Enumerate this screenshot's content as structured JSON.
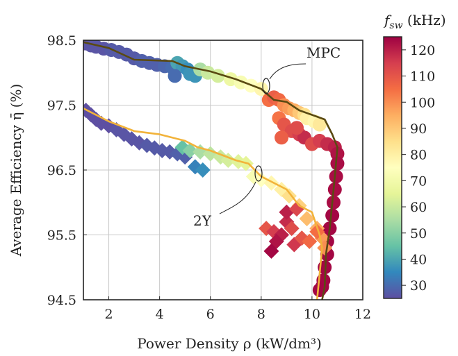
{
  "chart_data": {
    "type": "scatter",
    "xlabel": "Power Density ρ (kW/dm³)",
    "ylabel": "Average Efficiency η̄ (%)",
    "xlim": [
      1,
      12
    ],
    "ylim": [
      94.5,
      98.5
    ],
    "xticks": [
      "2",
      "4",
      "6",
      "8",
      "10",
      "12"
    ],
    "yticks": [
      "94.5",
      "95.5",
      "96.5",
      "97.5",
      "98.5"
    ],
    "grid": true,
    "colorbar": {
      "label": "f_sw (kHz)",
      "range": [
        25,
        125
      ],
      "ticks": [
        "30",
        "40",
        "50",
        "60",
        "70",
        "80",
        "90",
        "100",
        "110",
        "120"
      ],
      "colormap": [
        "#5e4fa2",
        "#3288bd",
        "#66c2a5",
        "#abdda4",
        "#e6f598",
        "#ffffbf",
        "#fee08b",
        "#fdae61",
        "#f46d43",
        "#d53e4f",
        "#9e0142"
      ]
    },
    "annotations": [
      {
        "text": "MPC",
        "x": 10.1,
        "y": 98.2
      },
      {
        "text": "2Y",
        "x": 5.0,
        "y": 95.7
      }
    ],
    "series": [
      {
        "marker": "circle",
        "points": [
          [
            1.0,
            98.45,
            25
          ],
          [
            1.1,
            98.45,
            25
          ],
          [
            1.3,
            98.42,
            26
          ],
          [
            1.5,
            98.4,
            26
          ],
          [
            1.8,
            98.37,
            26
          ],
          [
            2.1,
            98.35,
            27
          ],
          [
            2.4,
            98.32,
            27
          ],
          [
            2.7,
            98.28,
            27
          ],
          [
            3.0,
            98.22,
            27
          ],
          [
            3.3,
            98.18,
            28
          ],
          [
            3.6,
            98.15,
            28
          ],
          [
            3.9,
            98.12,
            28
          ],
          [
            4.2,
            98.1,
            29
          ],
          [
            4.5,
            98.08,
            30
          ],
          [
            4.7,
            98.15,
            40
          ],
          [
            4.9,
            98.1,
            38
          ],
          [
            5.1,
            98.05,
            36
          ],
          [
            5.2,
            97.98,
            37
          ],
          [
            4.6,
            97.95,
            30
          ],
          [
            5.4,
            97.95,
            37
          ],
          [
            5.6,
            98.05,
            55
          ],
          [
            5.9,
            98.0,
            60
          ],
          [
            6.3,
            97.95,
            62
          ],
          [
            6.8,
            97.9,
            68
          ],
          [
            7.2,
            97.85,
            72
          ],
          [
            7.6,
            97.8,
            75
          ],
          [
            8.0,
            97.75,
            78
          ],
          [
            8.3,
            97.58,
            105
          ],
          [
            8.5,
            97.62,
            108
          ],
          [
            8.7,
            97.58,
            106
          ],
          [
            8.9,
            97.5,
            100
          ],
          [
            9.1,
            97.45,
            98
          ],
          [
            9.3,
            97.42,
            95
          ],
          [
            9.5,
            97.38,
            90
          ],
          [
            9.7,
            97.35,
            85
          ],
          [
            9.8,
            97.3,
            80
          ],
          [
            10.1,
            97.25,
            78
          ],
          [
            10.3,
            97.2,
            82
          ],
          [
            8.7,
            97.3,
            104
          ],
          [
            8.9,
            97.2,
            110
          ],
          [
            9.2,
            97.1,
            112
          ],
          [
            9.5,
            97.05,
            115
          ],
          [
            9.7,
            97.0,
            118
          ],
          [
            9.4,
            97.15,
            112
          ],
          [
            8.8,
            97.0,
            108
          ],
          [
            10.0,
            96.9,
            112
          ],
          [
            10.3,
            96.95,
            115
          ],
          [
            10.6,
            96.9,
            118
          ],
          [
            10.9,
            96.85,
            120
          ],
          [
            11.0,
            96.75,
            122
          ],
          [
            11.0,
            96.6,
            123
          ],
          [
            10.95,
            96.4,
            123
          ],
          [
            10.9,
            96.2,
            123
          ],
          [
            10.85,
            96.0,
            123
          ],
          [
            10.8,
            95.8,
            124
          ],
          [
            10.7,
            95.6,
            124
          ],
          [
            10.6,
            95.4,
            124
          ],
          [
            10.6,
            95.2,
            124
          ],
          [
            10.5,
            95.0,
            124
          ],
          [
            10.45,
            94.8,
            124
          ],
          [
            10.4,
            94.7,
            124
          ],
          [
            10.3,
            94.65,
            124
          ]
        ]
      },
      {
        "marker": "diamond",
        "points": [
          [
            1.1,
            97.42,
            25
          ],
          [
            1.3,
            97.35,
            25
          ],
          [
            1.5,
            97.28,
            25
          ],
          [
            1.7,
            97.22,
            25
          ],
          [
            2.0,
            97.18,
            25
          ],
          [
            2.3,
            97.12,
            26
          ],
          [
            2.6,
            97.05,
            26
          ],
          [
            2.9,
            96.98,
            26
          ],
          [
            3.2,
            96.92,
            26
          ],
          [
            3.5,
            96.88,
            27
          ],
          [
            3.8,
            96.84,
            27
          ],
          [
            4.1,
            96.8,
            27
          ],
          [
            4.4,
            96.78,
            27
          ],
          [
            4.7,
            96.75,
            28
          ],
          [
            5.0,
            96.7,
            28
          ],
          [
            5.4,
            96.55,
            34
          ],
          [
            5.7,
            96.5,
            36
          ],
          [
            4.9,
            96.85,
            45
          ],
          [
            5.2,
            96.8,
            50
          ],
          [
            5.6,
            96.78,
            55
          ],
          [
            6.0,
            96.75,
            58
          ],
          [
            6.4,
            96.7,
            60
          ],
          [
            6.7,
            96.65,
            62
          ],
          [
            7.1,
            96.63,
            64
          ],
          [
            7.4,
            96.6,
            65
          ],
          [
            7.7,
            96.4,
            72
          ],
          [
            8.0,
            96.35,
            75
          ],
          [
            8.4,
            96.3,
            78
          ],
          [
            8.8,
            96.2,
            80
          ],
          [
            9.1,
            96.1,
            85
          ],
          [
            9.5,
            95.95,
            88
          ],
          [
            9.8,
            95.75,
            92
          ],
          [
            10.2,
            95.6,
            95
          ],
          [
            10.4,
            95.45,
            98
          ],
          [
            10.5,
            95.3,
            100
          ],
          [
            8.2,
            95.6,
            110
          ],
          [
            8.5,
            95.55,
            115
          ],
          [
            8.8,
            95.5,
            120
          ],
          [
            9.0,
            95.7,
            118
          ],
          [
            9.2,
            95.6,
            112
          ],
          [
            8.6,
            95.4,
            122
          ],
          [
            8.4,
            95.25,
            124
          ],
          [
            9.3,
            95.35,
            116
          ],
          [
            9.6,
            95.45,
            110
          ],
          [
            9.9,
            95.4,
            106
          ],
          [
            10.2,
            95.55,
            105
          ],
          [
            9.0,
            95.85,
            120
          ],
          [
            9.4,
            95.9,
            113
          ]
        ]
      }
    ],
    "fit_lines": [
      {
        "color": "#5a4a12",
        "points": [
          [
            1.0,
            98.47
          ],
          [
            2.0,
            98.38
          ],
          [
            3.0,
            98.2
          ],
          [
            4.5,
            98.18
          ],
          [
            5.0,
            98.1
          ],
          [
            6.0,
            98.02
          ],
          [
            7.0,
            97.9
          ],
          [
            8.0,
            97.75
          ],
          [
            8.5,
            97.58
          ],
          [
            9.0,
            97.55
          ],
          [
            9.5,
            97.42
          ],
          [
            10.0,
            97.35
          ],
          [
            10.5,
            97.28
          ],
          [
            10.8,
            97.05
          ],
          [
            11.0,
            96.85
          ],
          [
            10.9,
            96.4
          ],
          [
            10.8,
            96.0
          ],
          [
            10.7,
            95.6
          ],
          [
            10.55,
            95.2
          ],
          [
            10.5,
            94.7
          ],
          [
            10.4,
            94.5
          ]
        ]
      },
      {
        "color": "#f2b33a",
        "points": [
          [
            1.0,
            97.45
          ],
          [
            2.0,
            97.25
          ],
          [
            3.0,
            97.1
          ],
          [
            4.0,
            97.05
          ],
          [
            5.0,
            96.95
          ],
          [
            5.5,
            96.85
          ],
          [
            6.0,
            96.8
          ],
          [
            7.0,
            96.65
          ],
          [
            7.5,
            96.6
          ],
          [
            8.0,
            96.4
          ],
          [
            9.0,
            96.2
          ],
          [
            9.5,
            95.95
          ],
          [
            10.0,
            95.85
          ],
          [
            10.3,
            95.5
          ],
          [
            10.4,
            95.3
          ],
          [
            10.35,
            95.1
          ],
          [
            10.3,
            94.9
          ],
          [
            10.2,
            94.5
          ]
        ]
      }
    ]
  }
}
